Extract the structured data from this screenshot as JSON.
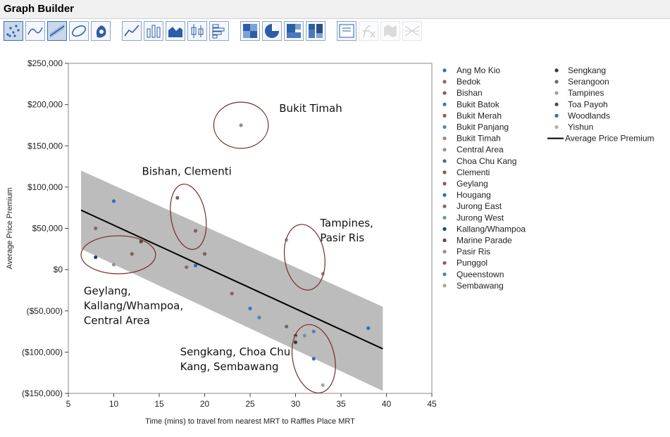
{
  "app": {
    "title": "Graph Builder"
  },
  "toolbar": {
    "buttons": [
      {
        "name": "points",
        "icon": "points-icon",
        "selected": true,
        "disabled": false
      },
      {
        "name": "smoother",
        "icon": "smoother-icon",
        "selected": false,
        "disabled": false
      },
      {
        "name": "line-of-fit",
        "icon": "line-of-fit-icon",
        "selected": true,
        "disabled": false
      },
      {
        "name": "ellipse",
        "icon": "ellipse-icon",
        "selected": false,
        "disabled": false
      },
      {
        "name": "contour",
        "icon": "contour-icon",
        "selected": false,
        "disabled": false
      },
      {
        "name": "line",
        "icon": "line-chart-icon",
        "selected": false,
        "disabled": false
      },
      {
        "name": "bar",
        "icon": "bar-chart-icon",
        "selected": false,
        "disabled": false
      },
      {
        "name": "area",
        "icon": "area-chart-icon",
        "selected": false,
        "disabled": false
      },
      {
        "name": "box-plot",
        "icon": "box-plot-icon",
        "selected": false,
        "disabled": false
      },
      {
        "name": "histogram",
        "icon": "histogram-icon",
        "selected": false,
        "disabled": false
      },
      {
        "name": "heatmap",
        "icon": "heatmap-icon",
        "selected": false,
        "disabled": false
      },
      {
        "name": "pie",
        "icon": "pie-chart-icon",
        "selected": false,
        "disabled": false
      },
      {
        "name": "treemap",
        "icon": "treemap-icon",
        "selected": false,
        "disabled": false
      },
      {
        "name": "mosaic",
        "icon": "mosaic-icon",
        "selected": false,
        "disabled": false
      },
      {
        "name": "caption-box",
        "icon": "caption-box-icon",
        "selected": false,
        "disabled": false
      },
      {
        "name": "formula",
        "icon": "formula-icon",
        "selected": false,
        "disabled": true
      },
      {
        "name": "map-shapes",
        "icon": "map-shapes-icon",
        "selected": false,
        "disabled": true
      },
      {
        "name": "parallel",
        "icon": "parallel-icon",
        "selected": false,
        "disabled": true
      }
    ]
  },
  "chart_data": {
    "type": "scatter",
    "title": "",
    "xlabel": "Time (mins) to travel from nearest MRT to Raffles Place MRT",
    "ylabel": "Average Price Premium",
    "xlim": [
      5,
      45
    ],
    "ylim": [
      -150000,
      250000
    ],
    "xticks": [
      5,
      10,
      15,
      20,
      25,
      30,
      35,
      40,
      45
    ],
    "yticks": [
      {
        "value": 250000,
        "label": "$250,000"
      },
      {
        "value": 200000,
        "label": "$200,000"
      },
      {
        "value": 150000,
        "label": "$150,000"
      },
      {
        "value": 100000,
        "label": "$100,000"
      },
      {
        "value": 50000,
        "label": "$50,000"
      },
      {
        "value": 0,
        "label": "$0"
      },
      {
        "value": -50000,
        "label": "($50,000)"
      },
      {
        "value": -100000,
        "label": "($100,000)"
      },
      {
        "value": -150000,
        "label": "($150,000)"
      }
    ],
    "grid": false,
    "legend_position": "right",
    "series": [
      {
        "name": "Ang Mo Kio",
        "x": 19,
        "y": 5000,
        "color": "#2e6fb7"
      },
      {
        "name": "Bedok",
        "x": 18,
        "y": 3000,
        "color": "#8a6a68"
      },
      {
        "name": "Bishan",
        "x": 19,
        "y": 47000,
        "color": "#8f5a5a"
      },
      {
        "name": "Bukit Batok",
        "x": 25,
        "y": -47000,
        "color": "#3b78c0"
      },
      {
        "name": "Bukit Merah",
        "x": 23,
        "y": -29000,
        "color": "#8a5f66"
      },
      {
        "name": "Bukit Panjang",
        "x": 26,
        "y": -58000,
        "color": "#4a86c5"
      },
      {
        "name": "Bukit Timah",
        "x": 24,
        "y": 175000,
        "color": "#9a8a88"
      },
      {
        "name": "Central Area",
        "x": 10,
        "y": 6000,
        "color": "#a09090"
      },
      {
        "name": "Choa Chu Kang",
        "x": 32,
        "y": -108000,
        "color": "#3a6bb0"
      },
      {
        "name": "Clementi",
        "x": 17,
        "y": 87000,
        "color": "#8a5a5a"
      },
      {
        "name": "Geylang",
        "x": 12,
        "y": 19000,
        "color": "#8a5c5c"
      },
      {
        "name": "Hougang",
        "x": 10,
        "y": 83000,
        "color": "#2f6db5"
      },
      {
        "name": "Jurong East",
        "x": 8,
        "y": 50000,
        "color": "#8a6464"
      },
      {
        "name": "Jurong West",
        "x": 31,
        "y": -80000,
        "color": "#6d8fb8"
      },
      {
        "name": "Kallang/Whampoa",
        "x": 8,
        "y": 15000,
        "color": "#1d3f78"
      },
      {
        "name": "Marine Parade",
        "x": 13,
        "y": 34000,
        "color": "#6a4444"
      },
      {
        "name": "Pasir Ris",
        "x": 33,
        "y": -5000,
        "color": "#9a9090"
      },
      {
        "name": "Punggol",
        "x": 20,
        "y": 19000,
        "color": "#8a5c5c"
      },
      {
        "name": "Queenstown",
        "x": 32,
        "y": -75000,
        "color": "#5a7fb0"
      },
      {
        "name": "Sembawang",
        "x": 33,
        "y": -140000,
        "color": "#a8a8a8"
      },
      {
        "name": "Sengkang",
        "x": 30,
        "y": -88000,
        "color": "#3a3a3a"
      },
      {
        "name": "Serangoon",
        "x": 29,
        "y": -69000,
        "color": "#6a6a6a"
      },
      {
        "name": "Tampines",
        "x": 29,
        "y": 36000,
        "color": "#a0a0a0"
      },
      {
        "name": "Toa Payoh",
        "x": 30,
        "y": -80000,
        "color": "#4a4a4a"
      },
      {
        "name": "Woodlands",
        "x": 38,
        "y": -71000,
        "color": "#2e6fb7"
      },
      {
        "name": "Yishun",
        "x": 30,
        "y": -83000,
        "color": "#b0b0b0"
      }
    ],
    "fit_line": {
      "name": "Average Price Premium",
      "color": "#000000",
      "points": [
        [
          6.4,
          72000
        ],
        [
          39.6,
          -96000
        ]
      ],
      "band_upper": [
        [
          6.4,
          120000
        ],
        [
          39.6,
          -45000
        ]
      ],
      "band_lower": [
        [
          6.4,
          25000
        ],
        [
          39.6,
          -147000
        ]
      ],
      "band_color": "#b8b8b8"
    },
    "annotations": [
      {
        "lines": [
          "Bukit Timah"
        ],
        "x": 24,
        "y": 175000,
        "rx": 3.0,
        "ry": 28000,
        "tx": 28.2,
        "ty": 191000
      },
      {
        "lines": [
          "Bishan, Clementi"
        ],
        "x": 18.2,
        "y": 64000,
        "rx": 1.9,
        "ry": 40000,
        "tx": 13.1,
        "ty": 115000
      },
      {
        "lines": [
          "Tampines,",
          "Pasir Ris"
        ],
        "x": 31.0,
        "y": 15000,
        "rx": 2.2,
        "ry": 40000,
        "tx": 32.7,
        "ty": 52000
      },
      {
        "lines": [
          "Geylang,",
          "Kallang/Whampoa,",
          "Central Area"
        ],
        "x": 10.5,
        "y": 18000,
        "rx": 4.1,
        "ry": 23000,
        "tx": 6.7,
        "ty": -30000
      },
      {
        "lines": [
          "Sengkang, Choa Chu",
          "Kang, Sembawang"
        ],
        "x": 32.0,
        "y": -108000,
        "rx": 2.3,
        "ry": 42000,
        "tx": 17.3,
        "ty": -104000
      }
    ],
    "ellipse_color": "#7a2a2a"
  }
}
